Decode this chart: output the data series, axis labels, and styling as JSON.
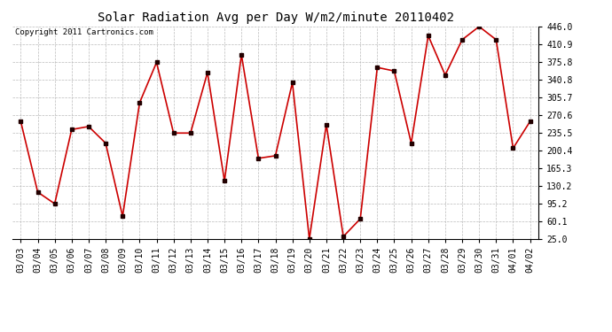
{
  "title": "Solar Radiation Avg per Day W/m2/minute 20110402",
  "copyright_text": "Copyright 2011 Cartronics.com",
  "dates": [
    "03/03",
    "03/04",
    "03/05",
    "03/06",
    "03/07",
    "03/08",
    "03/09",
    "03/10",
    "03/11",
    "03/12",
    "03/13",
    "03/14",
    "03/15",
    "03/16",
    "03/17",
    "03/18",
    "03/19",
    "03/20",
    "03/21",
    "03/22",
    "03/23",
    "03/24",
    "03/25",
    "03/26",
    "03/27",
    "03/28",
    "03/29",
    "03/30",
    "03/31",
    "04/01",
    "04/02"
  ],
  "values": [
    258,
    118,
    95,
    242,
    248,
    215,
    70,
    295,
    375,
    235,
    235,
    355,
    140,
    390,
    185,
    190,
    335,
    25,
    252,
    30,
    65,
    365,
    358,
    215,
    428,
    350,
    420,
    446,
    420,
    205,
    258
  ],
  "line_color": "#cc0000",
  "marker_color": "#220000",
  "bg_color": "#ffffff",
  "grid_color": "#bbbbbb",
  "ylim": [
    25.0,
    446.0
  ],
  "yticks": [
    25.0,
    60.1,
    95.2,
    130.2,
    165.3,
    200.4,
    235.5,
    270.6,
    305.7,
    340.8,
    375.8,
    410.9,
    446.0
  ],
  "title_fontsize": 10,
  "tick_fontsize": 7,
  "copyright_fontsize": 6.5,
  "figwidth": 6.9,
  "figheight": 3.75,
  "dpi": 100
}
